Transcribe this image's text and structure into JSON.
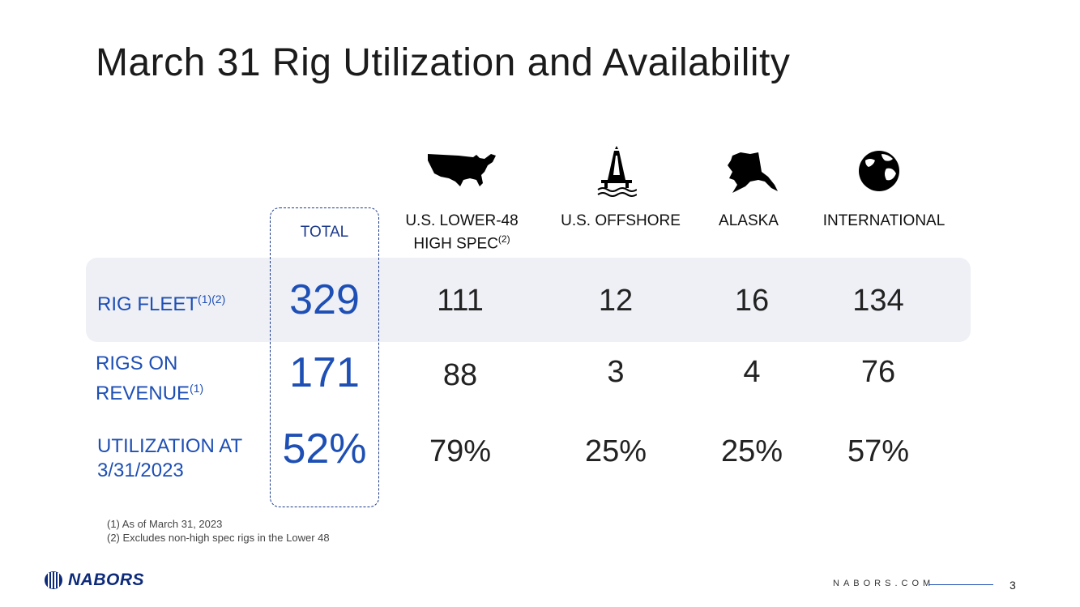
{
  "title": "March 31 Rig Utilization and Availability",
  "columns": {
    "total": "TOTAL",
    "lower48_line1": "U.S. LOWER-48",
    "lower48_line2": "HIGH SPEC",
    "lower48_sup": "(2)",
    "offshore": "U.S. OFFSHORE",
    "alaska": "ALASKA",
    "international": "INTERNATIONAL"
  },
  "icons": {
    "lower48": "us-map-icon",
    "offshore": "offshore-rig-icon",
    "alaska": "alaska-map-icon",
    "international": "globe-icon"
  },
  "rows": {
    "fleet": {
      "label": "RIG FLEET",
      "sup": "(1)(2)",
      "total": "329",
      "lower48": "111",
      "offshore": "12",
      "alaska": "16",
      "international": "134"
    },
    "revenue": {
      "label_line1": "RIGS ON",
      "label_line2": "REVENUE",
      "sup": "(1)",
      "total": "171",
      "lower48": "88",
      "offshore": "3",
      "alaska": "4",
      "international": "76"
    },
    "utilization": {
      "label_line1": "UTILIZATION AT",
      "label_line2": "3/31/2023",
      "total": "52%",
      "lower48": "79%",
      "offshore": "25%",
      "alaska": "25%",
      "international": "57%"
    }
  },
  "footnotes": [
    "(1)  As of March 31, 2023",
    "(2)  Excludes non-high spec rigs in the Lower 48"
  ],
  "footer": {
    "logo": "NABORS",
    "site": "NABORS.COM",
    "page": "3"
  },
  "colors": {
    "accent": "#1e4fb5",
    "band": "#eef0f6"
  }
}
